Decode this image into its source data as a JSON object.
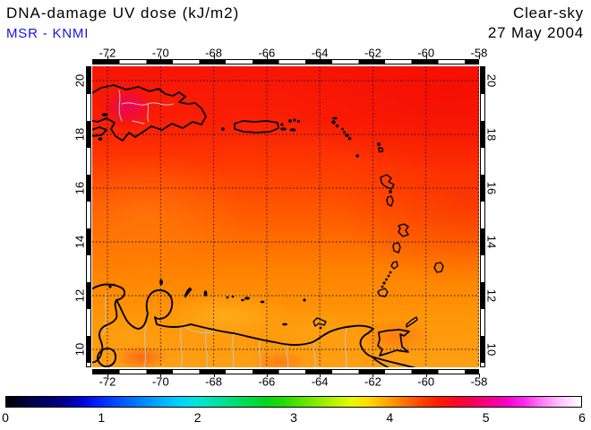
{
  "header": {
    "title": "DNA-damage UV dose (kJ/m2)",
    "subtitle": "MSR - KNMI",
    "condition": "Clear-sky",
    "date": "27 May 2004"
  },
  "colors": {
    "subtitle_blue": "#1414e6",
    "hotspot_magenta": "#e9085c",
    "field_top_red": "#f81505",
    "field_bottom_orange": "#ffa012"
  },
  "map": {
    "lon_ticks": [
      "-72",
      "-70",
      "-68",
      "-66",
      "-64",
      "-62",
      "-60",
      "-58"
    ],
    "lat_ticks": [
      "20",
      "18",
      "16",
      "14",
      "12",
      "10"
    ]
  },
  "colorbar": {
    "ticks": [
      "0",
      "1",
      "2",
      "3",
      "4",
      "5",
      "6"
    ],
    "stops": [
      [
        0,
        "#000000"
      ],
      [
        4,
        "#000046"
      ],
      [
        9,
        "#00007d"
      ],
      [
        13,
        "#0000d2"
      ],
      [
        16,
        "#0023ff"
      ],
      [
        21,
        "#0064ff"
      ],
      [
        26,
        "#00a4ff"
      ],
      [
        30,
        "#00d2ff"
      ],
      [
        33,
        "#00e6da"
      ],
      [
        37,
        "#00e1a0"
      ],
      [
        41,
        "#00dc5f"
      ],
      [
        45,
        "#00d71e"
      ],
      [
        48,
        "#1edc00"
      ],
      [
        52,
        "#64e600"
      ],
      [
        56,
        "#aaf000"
      ],
      [
        60,
        "#e6fa00"
      ],
      [
        63,
        "#ffdc00"
      ],
      [
        66,
        "#ffaa00"
      ],
      [
        69,
        "#ff7800"
      ],
      [
        72,
        "#ff4600"
      ],
      [
        75,
        "#ff1e00"
      ],
      [
        78,
        "#fa0a23"
      ],
      [
        81,
        "#f50055"
      ],
      [
        84,
        "#f8008c"
      ],
      [
        87,
        "#fb00c8"
      ],
      [
        90,
        "#fd28f0"
      ],
      [
        93,
        "#fe78f6"
      ],
      [
        96,
        "#ffbefa"
      ],
      [
        100,
        "#ffffff"
      ]
    ]
  },
  "chart_data": {
    "type": "heatmap",
    "title": "DNA-damage UV dose (kJ/m2)",
    "source_label": "MSR - KNMI",
    "condition": "Clear-sky",
    "date": "27 May 2004",
    "region": {
      "lon_range": [
        -72.5,
        -58
      ],
      "lat_range": [
        9.3,
        20.5
      ],
      "grid_spacing_deg": 2,
      "area": "Caribbean: Hispaniola, Puerto Rico, Lesser Antilles, Trinidad, Venezuelan coast"
    },
    "scale": {
      "min": 0,
      "max": 6,
      "unit": "kJ/m2",
      "ticks": [
        0,
        1,
        2,
        3,
        4,
        5,
        6
      ]
    },
    "estimated_dose_kj_m2": {
      "north_band_lat_18_20": 4.5,
      "hispaniola_interior_hotspot": 5.0,
      "central_band_lat_14_16": 4.3,
      "southern_band_lat_10_12": 4.0
    }
  }
}
